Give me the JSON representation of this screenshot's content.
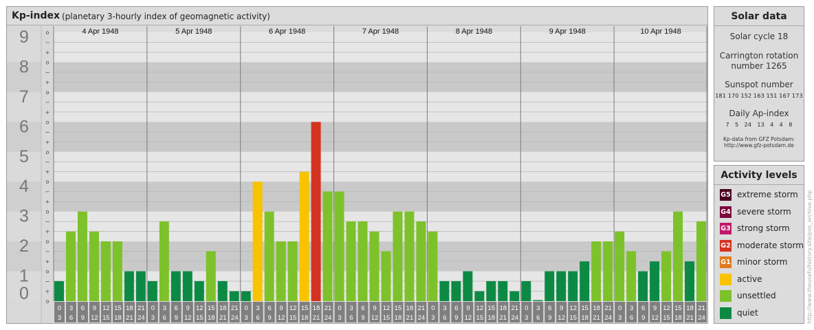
{
  "header": {
    "title": "Kp-index",
    "subtitle": "(planetary 3-hourly index of geomagnetic activity)"
  },
  "chart_data": {
    "type": "bar",
    "title": "Kp-index",
    "subtitle": "(planetary 3-hourly index of geomagnetic activity)",
    "ylim": [
      0,
      9
    ],
    "y_ticks": [
      "0",
      "1",
      "2",
      "3",
      "4",
      "5",
      "6",
      "7",
      "8",
      "9"
    ],
    "minor_tick_labels": [
      "o",
      "+",
      "−"
    ],
    "days": [
      "4 Apr 1948",
      "5 Apr 1948",
      "6 Apr 1948",
      "7 Apr 1948",
      "8 Apr 1948",
      "9 Apr 1948",
      "10 Apr 1948"
    ],
    "hour_labels_top": [
      "0",
      "3",
      "6",
      "9",
      "12",
      "15",
      "18",
      "21"
    ],
    "hour_labels_bottom": [
      "3",
      "6",
      "9",
      "12",
      "15",
      "18",
      "21",
      "24"
    ],
    "values": [
      0.67,
      2.33,
      3.0,
      2.33,
      2.0,
      2.0,
      1.0,
      1.0,
      0.67,
      2.67,
      1.0,
      1.0,
      0.67,
      1.67,
      0.67,
      0.33,
      0.33,
      4.0,
      3.0,
      2.0,
      2.0,
      4.33,
      6.0,
      3.67,
      3.67,
      2.67,
      2.67,
      2.33,
      1.67,
      3.0,
      3.0,
      2.67,
      2.33,
      0.67,
      0.67,
      1.0,
      0.33,
      0.67,
      0.67,
      0.33,
      0.67,
      0.0,
      1.0,
      1.0,
      1.0,
      1.33,
      2.0,
      2.0,
      2.33,
      1.67,
      1.0,
      1.33,
      1.67,
      3.0,
      1.33,
      2.67
    ],
    "levels": [
      {
        "code": "G5",
        "label": "extreme storm",
        "color": "#4b0020"
      },
      {
        "code": "G4",
        "label": "severe storm",
        "color": "#7a0a3c"
      },
      {
        "code": "G3",
        "label": "strong storm",
        "color": "#c0186a"
      },
      {
        "code": "G2",
        "label": "moderate storm",
        "color": "#d43320"
      },
      {
        "code": "G1",
        "label": "minor storm",
        "color": "#e07a20"
      },
      {
        "code": "",
        "label": "active",
        "color": "#f9c300"
      },
      {
        "code": "",
        "label": "unsettled",
        "color": "#7dc22a"
      },
      {
        "code": "",
        "label": "quiet",
        "color": "#0c8a44"
      }
    ]
  },
  "solar": {
    "title": "Solar data",
    "cycle": "Solar cycle 18",
    "carrington_line1": "Carrington rotation",
    "carrington_line2": "number 1265",
    "sunspot_title": "Sunspot number",
    "sunspot_values": "181 170 152 163 151 167 173",
    "ap_title": "Daily Ap-index",
    "ap_values": "7   5   24   13   4   4   8",
    "source_line1": "Kp-data from GFZ Potsdam:",
    "source_line2": "http://www.gfz-potsdam.de"
  },
  "activity": {
    "title": "Activity levels"
  },
  "watermark": "http://www.theusefulhistory.site/pos_archive.php"
}
